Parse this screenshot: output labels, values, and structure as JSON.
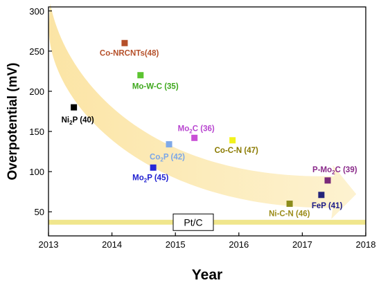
{
  "chart_data": {
    "type": "scatter",
    "title": "",
    "xlabel": "Year",
    "ylabel": "Overpotential (mV)",
    "xlim": [
      2013,
      2018
    ],
    "ylim": [
      20,
      305
    ],
    "x_ticks": [
      2013,
      2014,
      2015,
      2016,
      2017,
      2018
    ],
    "y_ticks": [
      50,
      100,
      150,
      200,
      250,
      300
    ],
    "grid": false,
    "legend": "none",
    "reference_line": {
      "label": "Pt/C",
      "y": 37,
      "color": "#f0e68c"
    },
    "trend_arrow": {
      "color": "#fbe7a1",
      "from": [
        2013.05,
        290
      ],
      "to": [
        2017.85,
        72
      ]
    },
    "points": [
      {
        "name": "Ni2P",
        "label_main": "Ni",
        "label_sub": "2",
        "label_tail": "P (40)",
        "x": 2013.4,
        "y": 180,
        "color": "#000000",
        "label_color": "#000000"
      },
      {
        "name": "Co-NRCNTs",
        "label_main": "Co-NRCNTs(48)",
        "label_sub": "",
        "label_tail": "",
        "x": 2014.2,
        "y": 260,
        "color": "#b5502a",
        "label_color": "#b5502a"
      },
      {
        "name": "Mo-W-C",
        "label_main": "Mo-W-C (35)",
        "label_sub": "",
        "label_tail": "",
        "x": 2014.45,
        "y": 220,
        "color": "#5cc431",
        "label_color": "#3ea81d"
      },
      {
        "name": "Mo2P",
        "label_main": "Mo",
        "label_sub": "2",
        "label_tail": "P (45)",
        "x": 2014.65,
        "y": 105,
        "color": "#2828d8",
        "label_color": "#1f1fd0"
      },
      {
        "name": "Co2P",
        "label_main": "Co",
        "label_sub": "2",
        "label_tail": "P (42)",
        "x": 2014.9,
        "y": 134,
        "color": "#7fa9e8",
        "label_color": "#7aa6e8"
      },
      {
        "name": "Mo2C",
        "label_main": "Mo",
        "label_sub": "2",
        "label_tail": "C (36)",
        "x": 2015.3,
        "y": 142,
        "color": "#c94fd6",
        "label_color": "#b845d0"
      },
      {
        "name": "Co-C-N",
        "label_main": "Co-C-N (47)",
        "label_sub": "",
        "label_tail": "",
        "x": 2015.9,
        "y": 139,
        "color": "#f2f21c",
        "label_color": "#8a7a00"
      },
      {
        "name": "Ni-C-N",
        "label_main": "Ni-C-N (46)",
        "label_sub": "",
        "label_tail": "",
        "x": 2016.8,
        "y": 60,
        "color": "#8c8c1c",
        "label_color": "#9b8b18"
      },
      {
        "name": "FeP",
        "label_main": "FeP (41)",
        "label_sub": "",
        "label_tail": "",
        "x": 2017.3,
        "y": 71,
        "color": "#23237a",
        "label_color": "#1a1a8a"
      },
      {
        "name": "P-Mo2C",
        "label_main": "P-Mo",
        "label_sub": "2",
        "label_tail": "C (39)",
        "x": 2017.4,
        "y": 89,
        "color": "#7a2a7a",
        "label_color": "#8a2a8a"
      }
    ]
  }
}
